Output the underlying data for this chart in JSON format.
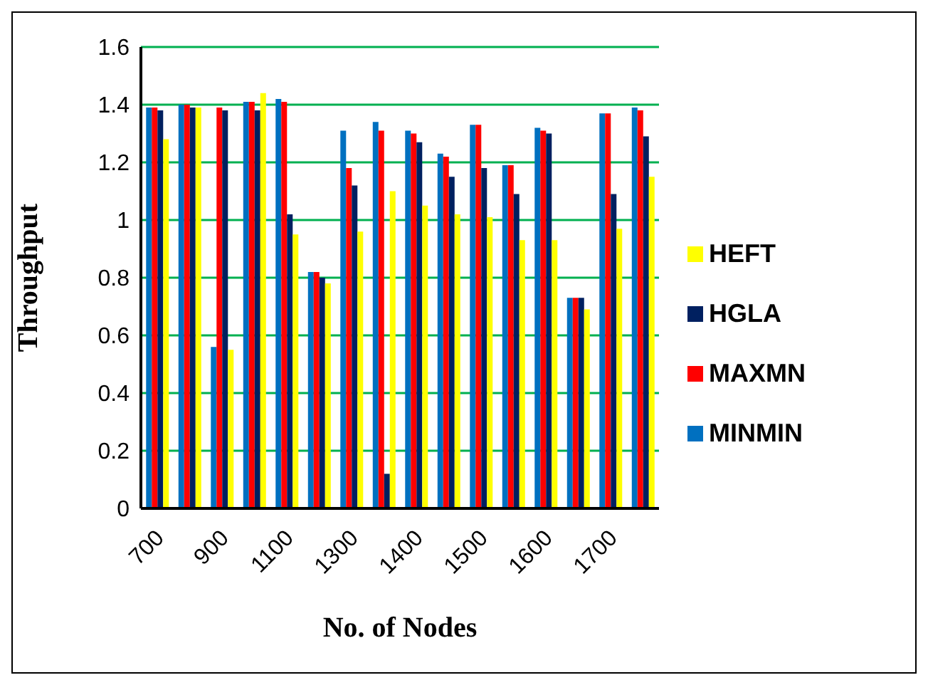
{
  "chart_data": {
    "type": "bar",
    "xlabel": "No. of Nodes",
    "ylabel": "Throughput",
    "categories": [
      "700",
      null,
      "900",
      null,
      "1100",
      null,
      "1300",
      null,
      "1400",
      null,
      "1500",
      null,
      "1600",
      null,
      "1700",
      null
    ],
    "series": [
      {
        "name": "MINMIN",
        "color": "#0070c0",
        "values": [
          1.39,
          1.4,
          0.56,
          1.41,
          1.42,
          0.82,
          1.31,
          1.34,
          1.31,
          1.23,
          1.33,
          1.19,
          1.32,
          0.73,
          1.37,
          1.39
        ]
      },
      {
        "name": "MAXMN",
        "color": "#ff0000",
        "values": [
          1.39,
          1.4,
          1.39,
          1.41,
          1.41,
          0.82,
          1.18,
          1.31,
          1.3,
          1.22,
          1.33,
          1.19,
          1.31,
          0.73,
          1.37,
          1.38
        ]
      },
      {
        "name": "HGLA",
        "color": "#002060",
        "values": [
          1.38,
          1.39,
          1.38,
          1.38,
          1.02,
          0.8,
          1.12,
          0.12,
          1.27,
          1.15,
          1.18,
          1.09,
          1.3,
          0.73,
          1.09,
          1.29
        ]
      },
      {
        "name": "HEFT",
        "color": "#ffff00",
        "values": [
          1.28,
          1.39,
          0.55,
          1.44,
          0.95,
          0.78,
          0.96,
          1.1,
          1.05,
          1.02,
          1.01,
          0.93,
          0.93,
          0.69,
          0.97,
          1.15
        ]
      }
    ],
    "ylim": [
      0,
      1.6
    ],
    "yticks": [
      0,
      0.2,
      0.4,
      0.6,
      0.8,
      1,
      1.2,
      1.4,
      1.6
    ],
    "grid": "y",
    "legend": "right"
  }
}
